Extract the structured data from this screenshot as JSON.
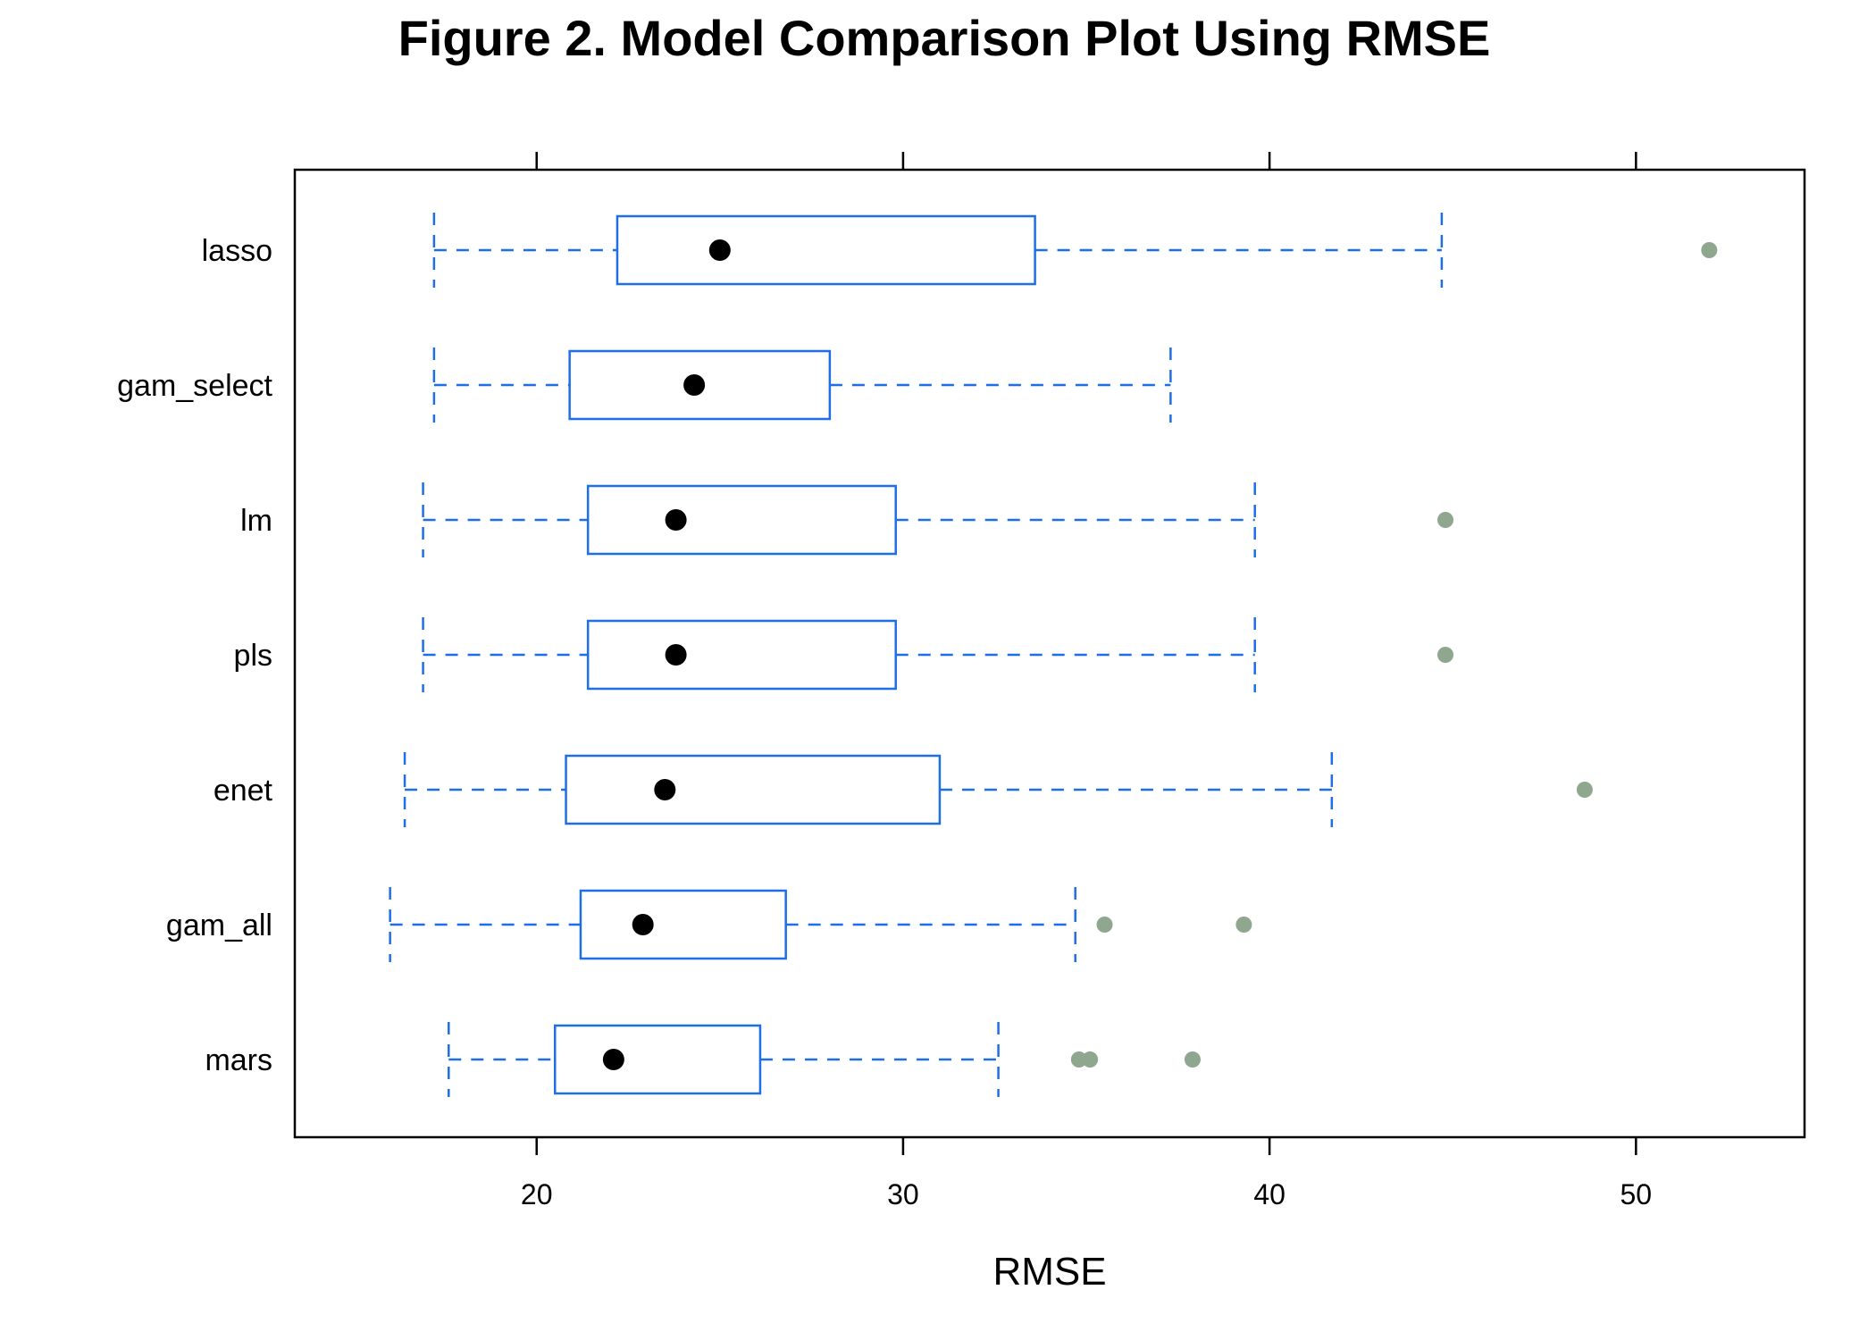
{
  "chart_data": {
    "type": "box",
    "title": "Figure 2. Model Comparison Plot Using RMSE",
    "xlabel": "RMSE",
    "ylabel": "",
    "xlim": [
      13.4,
      54.6
    ],
    "x_ticks": [
      20,
      30,
      40,
      50
    ],
    "grid": false,
    "legend": "none",
    "categories": [
      "lasso",
      "gam_select",
      "lm",
      "pls",
      "enet",
      "gam_all",
      "mars"
    ],
    "series": [
      {
        "name": "lasso",
        "whisker_low": 17.2,
        "q1": 22.2,
        "median": 25.0,
        "q3": 33.6,
        "whisker_high": 44.7,
        "outliers": [
          52.0
        ]
      },
      {
        "name": "gam_select",
        "whisker_low": 17.2,
        "q1": 20.9,
        "median": 24.3,
        "q3": 28.0,
        "whisker_high": 37.3,
        "outliers": []
      },
      {
        "name": "lm",
        "whisker_low": 16.9,
        "q1": 21.4,
        "median": 23.8,
        "q3": 29.8,
        "whisker_high": 39.6,
        "outliers": [
          44.8
        ]
      },
      {
        "name": "pls",
        "whisker_low": 16.9,
        "q1": 21.4,
        "median": 23.8,
        "q3": 29.8,
        "whisker_high": 39.6,
        "outliers": [
          44.8
        ]
      },
      {
        "name": "enet",
        "whisker_low": 16.4,
        "q1": 20.8,
        "median": 23.5,
        "q3": 31.0,
        "whisker_high": 41.7,
        "outliers": [
          48.6
        ]
      },
      {
        "name": "gam_all",
        "whisker_low": 16.0,
        "q1": 21.2,
        "median": 22.9,
        "q3": 26.8,
        "whisker_high": 34.7,
        "outliers": [
          35.5,
          39.3
        ]
      },
      {
        "name": "mars",
        "whisker_low": 17.6,
        "q1": 20.5,
        "median": 22.1,
        "q3": 26.1,
        "whisker_high": 32.6,
        "outliers": [
          34.8,
          35.1,
          37.9
        ]
      }
    ],
    "colors": {
      "box": "#1e6fe6",
      "whisker": "#1e6fe6",
      "median": "#000000",
      "outlier": "#8fa68f",
      "frame": "#000000"
    }
  }
}
